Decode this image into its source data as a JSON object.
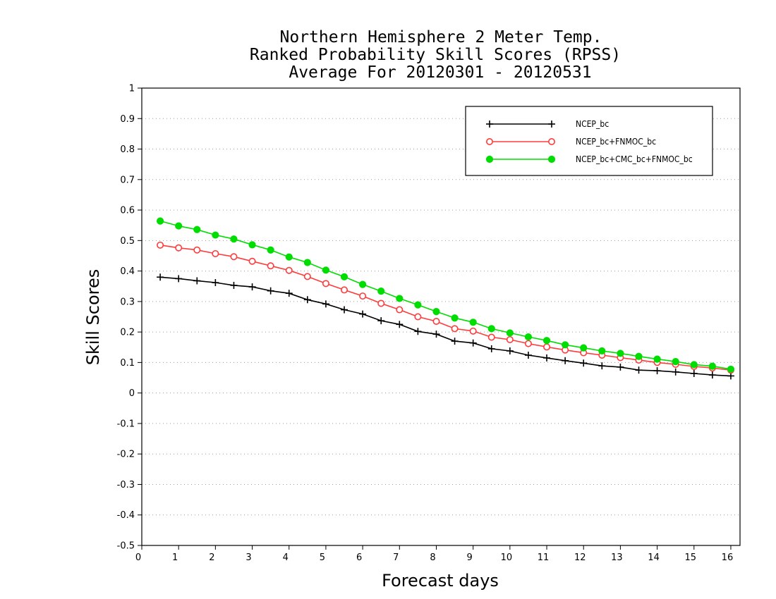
{
  "chart_data": {
    "type": "line",
    "title_lines": [
      "Northern Hemisphere 2 Meter Temp.",
      "Ranked Probability Skill Scores (RPSS)",
      "Average For 20120301 - 20120531"
    ],
    "xlabel": "Forecast days",
    "ylabel": "Skill Scores",
    "xlim": [
      0,
      16.25
    ],
    "ylim": [
      -0.5,
      1
    ],
    "x_ticks": [
      0,
      1,
      2,
      3,
      4,
      5,
      6,
      7,
      8,
      9,
      10,
      11,
      12,
      13,
      14,
      15,
      16
    ],
    "x_tick_labels": [
      "0",
      "1",
      "2",
      "3",
      "4",
      "5",
      "6",
      "7",
      "8",
      "9",
      "10",
      "11",
      "12",
      "13",
      "14",
      "15",
      "16"
    ],
    "y_ticks": [
      -0.5,
      -0.4,
      -0.3,
      -0.2,
      -0.1,
      0,
      0.1,
      0.2,
      0.3,
      0.4,
      0.5,
      0.6,
      0.7,
      0.8,
      0.9,
      1
    ],
    "y_tick_labels": [
      "-0.5",
      "-0.4",
      "-0.3",
      "-0.2",
      "-0.1",
      "0",
      "0.1",
      "0.2",
      "0.3",
      "0.4",
      "0.5",
      "0.6",
      "0.7",
      "0.8",
      "0.9",
      "1"
    ],
    "grid": "horizontal dotted",
    "legend_position": "top-right",
    "x": [
      0.5,
      1,
      1.5,
      2,
      2.5,
      3,
      3.5,
      4,
      4.5,
      5,
      5.5,
      6,
      6.5,
      7,
      7.5,
      8,
      8.5,
      9,
      9.5,
      10,
      10.5,
      11,
      11.5,
      12,
      12.5,
      13,
      13.5,
      14,
      14.5,
      15,
      15.5,
      16
    ],
    "series": [
      {
        "name": "NCEP_bc",
        "color": "#000000",
        "marker": "plus",
        "values": [
          0.38,
          0.375,
          0.368,
          0.362,
          0.353,
          0.348,
          0.335,
          0.327,
          0.306,
          0.292,
          0.273,
          0.259,
          0.237,
          0.225,
          0.202,
          0.193,
          0.17,
          0.164,
          0.145,
          0.138,
          0.124,
          0.115,
          0.106,
          0.098,
          0.089,
          0.085,
          0.075,
          0.073,
          0.069,
          0.064,
          0.059,
          0.056
        ]
      },
      {
        "name": "NCEP_bc+FNMOC_bc",
        "color": "#ff3b3b",
        "marker": "open-circle",
        "values": [
          0.485,
          0.476,
          0.469,
          0.457,
          0.447,
          0.432,
          0.417,
          0.402,
          0.382,
          0.359,
          0.338,
          0.318,
          0.294,
          0.273,
          0.25,
          0.235,
          0.211,
          0.203,
          0.183,
          0.175,
          0.162,
          0.151,
          0.141,
          0.132,
          0.124,
          0.116,
          0.108,
          0.1,
          0.094,
          0.087,
          0.082,
          0.075
        ]
      },
      {
        "name": "NCEP_bc+CMC_bc+FNMOC_bc",
        "color": "#00dd00",
        "marker": "filled-circle",
        "values": [
          0.564,
          0.548,
          0.536,
          0.518,
          0.505,
          0.486,
          0.469,
          0.446,
          0.428,
          0.403,
          0.381,
          0.356,
          0.334,
          0.31,
          0.289,
          0.267,
          0.246,
          0.232,
          0.211,
          0.197,
          0.184,
          0.172,
          0.158,
          0.148,
          0.138,
          0.13,
          0.12,
          0.111,
          0.103,
          0.093,
          0.088,
          0.078
        ]
      }
    ]
  }
}
